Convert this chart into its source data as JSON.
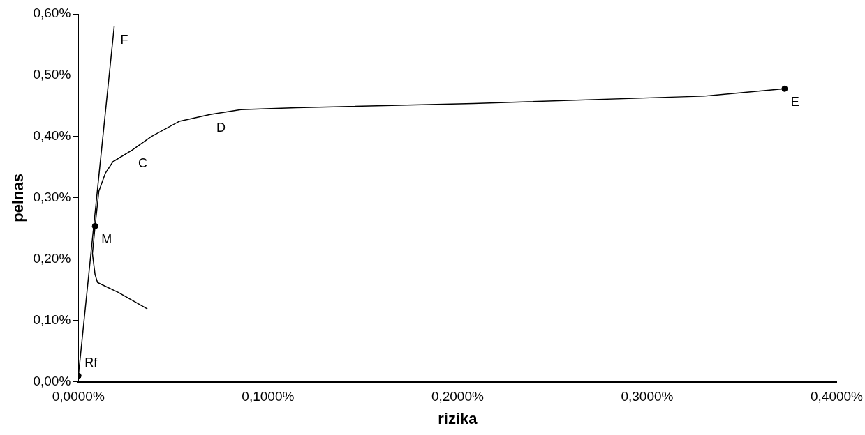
{
  "chart_data": {
    "type": "line",
    "xlabel": "rizika",
    "ylabel": "pelnas",
    "series": [
      {
        "type": "line",
        "color": "#000000",
        "marker": "none",
        "x": [
          0.0364,
          0.021,
          0.0101,
          0.0088,
          0.0074,
          0.0088,
          0.0108,
          0.0142,
          0.0182,
          0.0283,
          0.0385,
          0.0533,
          0.0695,
          0.0857,
          0.115,
          0.2085,
          0.33,
          0.3725
        ],
        "values": [
          0.119,
          0.146,
          0.162,
          0.175,
          0.209,
          0.254,
          0.311,
          0.34,
          0.359,
          0.378,
          0.4,
          0.425,
          0.436,
          0.444,
          0.447,
          0.454,
          0.466,
          0.478
        ]
      },
      {
        "type": "line",
        "color": "#000000",
        "marker": "none",
        "x": [
          0,
          0.0189
        ],
        "values": [
          0.01,
          0.58
        ]
      },
      {
        "type": "scatter",
        "color": "#000000",
        "marker": "circle",
        "x": [
          0,
          0.0088,
          0.3725
        ],
        "values": [
          0.01,
          0.254,
          0.478
        ]
      }
    ],
    "xlim": [
      0,
      0.4
    ],
    "xticks": [
      {
        "value": 0,
        "label": "0,0000%"
      },
      {
        "value": 0.1,
        "label": "0,1000%"
      },
      {
        "value": 0.2,
        "label": "0,2000%"
      },
      {
        "value": 0.3,
        "label": "0,3000%"
      },
      {
        "value": 0.4,
        "label": "0,4000%"
      }
    ],
    "ylim": [
      0,
      0.6
    ],
    "yticks": [
      {
        "value": 0,
        "label": "0,00%"
      },
      {
        "value": 0.1,
        "label": "0,10%"
      },
      {
        "value": 0.2,
        "label": "0,20%"
      },
      {
        "value": 0.3,
        "label": "0,30%"
      },
      {
        "value": 0.4,
        "label": "0,40%"
      },
      {
        "value": 0.5,
        "label": "0,50%"
      },
      {
        "value": 0.6,
        "label": "0,60%"
      }
    ],
    "grid": false,
    "legend": false,
    "annotations": [
      {
        "text": "Rf",
        "x": 0,
        "y": 0.01
      },
      {
        "text": "M",
        "x": 0.0088,
        "y": 0.254
      },
      {
        "text": "C",
        "x": 0.0283,
        "y": 0.378
      },
      {
        "text": "D",
        "x": 0.0695,
        "y": 0.436
      },
      {
        "text": "E",
        "x": 0.3725,
        "y": 0.478
      },
      {
        "text": "F",
        "x": 0.0189,
        "y": 0.58
      }
    ]
  }
}
